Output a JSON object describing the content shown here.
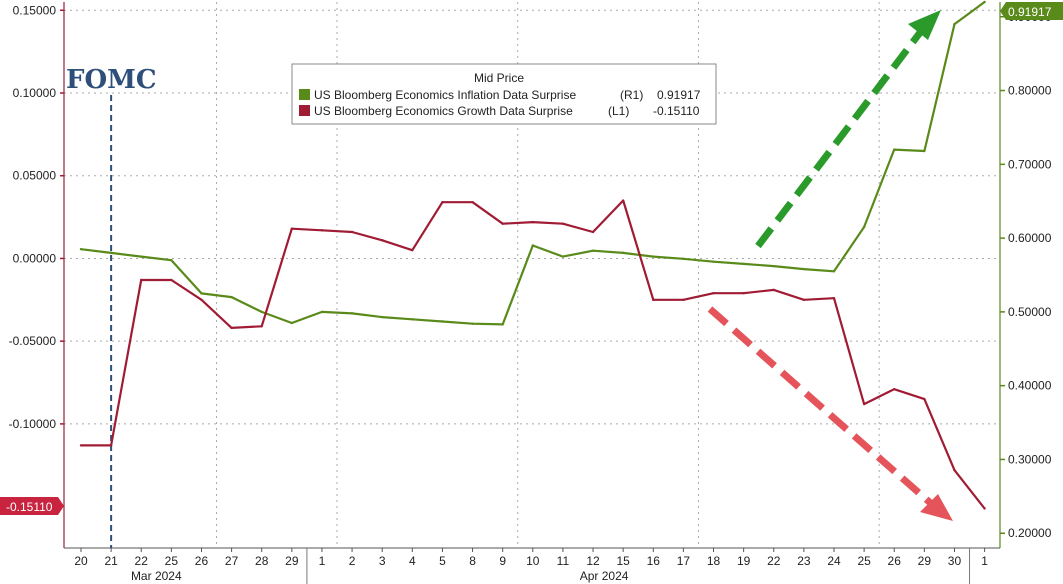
{
  "chart_data": {
    "type": "line",
    "legend": {
      "title": "Mid Price",
      "entries": [
        {
          "name": "US Bloomberg Economics Inflation Data Surprise",
          "axis": "(R1)",
          "last": "0.91917",
          "color": "#5a8a1a"
        },
        {
          "name": "US Bloomberg Economics Growth Data Surprise",
          "axis": "(L1)",
          "last": "-0.15110",
          "color": "#a01c34"
        }
      ]
    },
    "x_labels": [
      "20",
      "21",
      "22",
      "25",
      "26",
      "27",
      "28",
      "29",
      "1",
      "2",
      "3",
      "4",
      "5",
      "8",
      "9",
      "10",
      "11",
      "12",
      "15",
      "16",
      "17",
      "18",
      "19",
      "22",
      "23",
      "24",
      "25",
      "26",
      "29",
      "30",
      "1"
    ],
    "months": [
      "Mar 2024",
      "Apr 2024"
    ],
    "left_axis": {
      "ylim": [
        -0.175,
        0.155
      ],
      "ticks": [
        "0.15000",
        "0.10000",
        "0.05000",
        "0.00000",
        "-0.05000",
        "-0.10000"
      ]
    },
    "right_axis": {
      "ylim": [
        0.18,
        0.92
      ],
      "ticks": [
        "0.90000",
        "0.80000",
        "0.70000",
        "0.60000",
        "0.50000",
        "0.40000",
        "0.30000",
        "0.20000"
      ]
    },
    "series": [
      {
        "name": "US Bloomberg Economics Inflation Data Surprise",
        "axis": "right",
        "color": "#5a8a1a",
        "values": [
          0.585,
          0.58,
          0.575,
          0.57,
          0.525,
          0.52,
          0.5,
          0.485,
          0.5,
          0.498,
          0.493,
          0.49,
          0.487,
          0.484,
          0.483,
          0.59,
          0.575,
          0.583,
          0.58,
          0.575,
          0.572,
          0.568,
          0.565,
          0.562,
          0.558,
          0.555,
          0.615,
          0.72,
          0.718,
          0.89,
          0.92
        ]
      },
      {
        "name": "US Bloomberg Economics Growth Data Surprise",
        "axis": "left",
        "color": "#a01c34",
        "values": [
          -0.113,
          -0.113,
          -0.013,
          -0.013,
          -0.025,
          -0.042,
          -0.041,
          0.018,
          0.017,
          0.016,
          0.011,
          0.005,
          0.034,
          0.034,
          0.021,
          0.022,
          0.021,
          0.016,
          0.035,
          -0.025,
          -0.025,
          -0.021,
          -0.021,
          -0.019,
          -0.025,
          -0.024,
          -0.088,
          -0.079,
          -0.085,
          -0.128,
          -0.1511
        ]
      }
    ],
    "annotations": {
      "fomc_label": "FOMC",
      "fomc_index": 1,
      "last_left": "-0.15110",
      "last_right": "0.91917"
    }
  }
}
